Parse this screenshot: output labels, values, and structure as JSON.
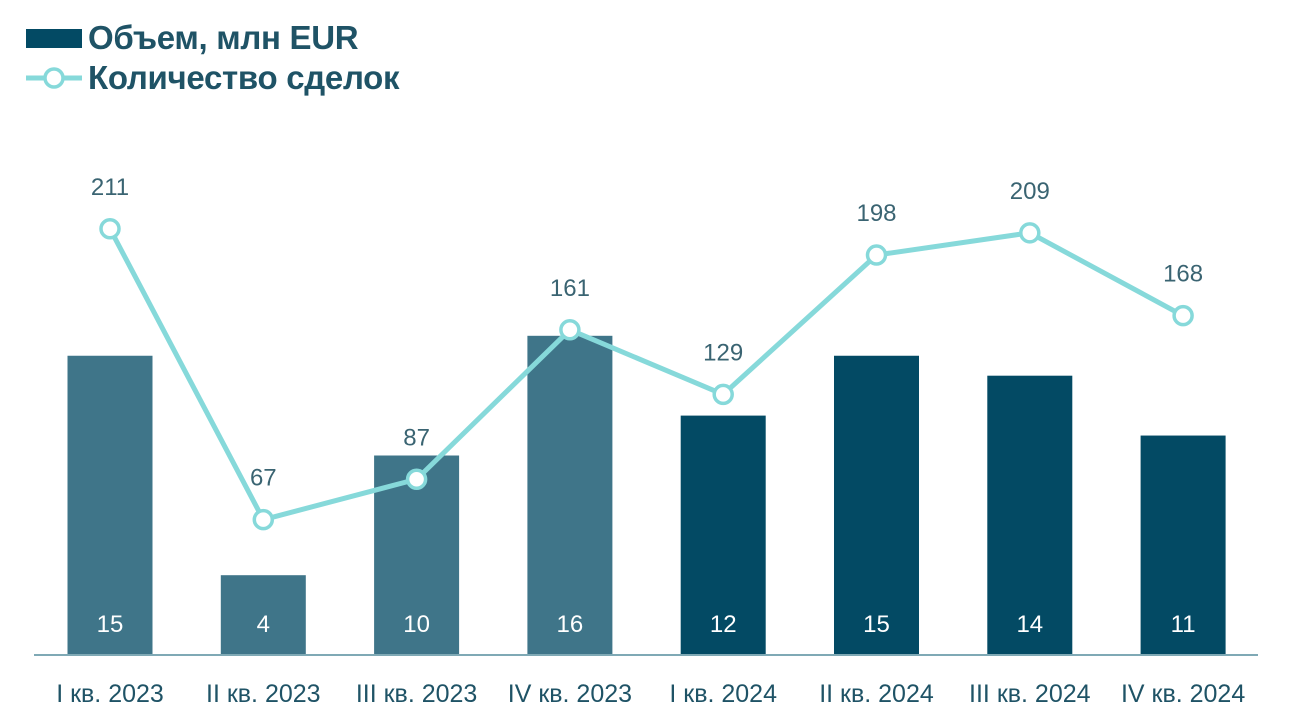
{
  "chart_data": {
    "type": "bar+line",
    "title": "",
    "categories": [
      "I кв. 2023",
      "II кв. 2023",
      "III кв. 2023",
      "IV кв. 2023",
      "I кв. 2024",
      "II кв. 2024",
      "III кв. 2024",
      "IV кв. 2024"
    ],
    "series": [
      {
        "name": "Объем, млн EUR",
        "type": "bar",
        "values": [
          15,
          4,
          10,
          16,
          12,
          15,
          14,
          11
        ],
        "colors": [
          "#3f7589",
          "#3f7589",
          "#3f7589",
          "#3f7589",
          "#034a64",
          "#034a64",
          "#034a64",
          "#034a64"
        ]
      },
      {
        "name": "Количество сделок",
        "type": "line",
        "values": [
          211,
          67,
          87,
          161,
          129,
          198,
          209,
          168
        ],
        "color": "#86d9da"
      }
    ],
    "legend": {
      "position": "top-left",
      "entries": [
        {
          "label": "Объем, млн EUR",
          "marker": "bar",
          "color": "#034a64"
        },
        {
          "label": "Количество сделок",
          "marker": "line-circle",
          "color": "#86d9da"
        }
      ]
    },
    "xlabel": "",
    "ylabel": "",
    "grid": false,
    "bar_ylim": [
      0,
      16
    ],
    "line_ylim": [
      0,
      211
    ]
  }
}
